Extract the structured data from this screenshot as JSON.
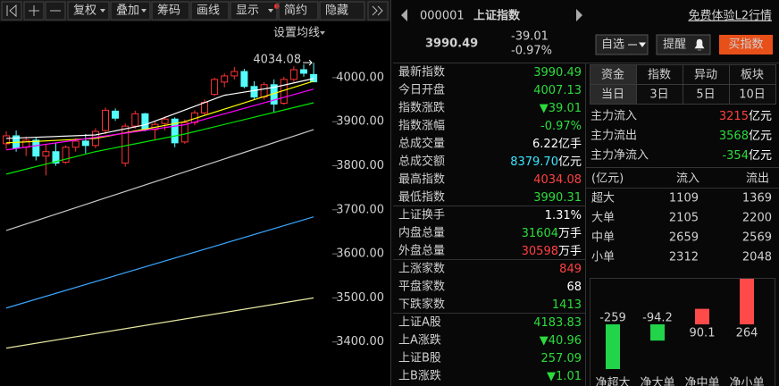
{
  "toolbar": {
    "buttons": [
      "复权",
      "叠加",
      "筹码",
      "画线",
      "显示",
      "简约",
      "隐藏"
    ],
    "active": 0,
    "ma_settings": "设置均线"
  },
  "chart_data": [
    {
      "type": "candlestick",
      "ylim": [
        3300,
        4085
      ],
      "yticks": [
        {
          "value": 4000,
          "label": "4000.00"
        },
        {
          "value": 3900,
          "label": "3900.00"
        },
        {
          "value": 3800,
          "label": "3800.00"
        },
        {
          "value": 3700,
          "label": "3700.00"
        },
        {
          "value": 3600,
          "label": "3600.00"
        },
        {
          "value": 3500,
          "label": "3500.00"
        },
        {
          "value": 3400,
          "label": "3400.00"
        }
      ],
      "up_color": "#ff3333",
      "down_color": "#54fcfc",
      "candles": [
        {
          "open": 3850,
          "high": 3878,
          "low": 3838,
          "close": 3868
        },
        {
          "open": 3868,
          "high": 3880,
          "low": 3832,
          "close": 3840
        },
        {
          "open": 3842,
          "high": 3866,
          "low": 3822,
          "close": 3858
        },
        {
          "open": 3858,
          "high": 3864,
          "low": 3812,
          "close": 3822
        },
        {
          "open": 3822,
          "high": 3848,
          "low": 3778,
          "close": 3832
        },
        {
          "open": 3832,
          "high": 3852,
          "low": 3800,
          "close": 3806
        },
        {
          "open": 3808,
          "high": 3846,
          "low": 3804,
          "close": 3842
        },
        {
          "open": 3842,
          "high": 3862,
          "low": 3832,
          "close": 3856
        },
        {
          "open": 3856,
          "high": 3872,
          "low": 3828,
          "close": 3846
        },
        {
          "open": 3846,
          "high": 3885,
          "low": 3840,
          "close": 3878
        },
        {
          "open": 3880,
          "high": 3932,
          "low": 3872,
          "close": 3926
        },
        {
          "open": 3924,
          "high": 3930,
          "low": 3902,
          "close": 3908
        },
        {
          "open": 3806,
          "high": 3896,
          "low": 3798,
          "close": 3890
        },
        {
          "open": 3890,
          "high": 3925,
          "low": 3884,
          "close": 3918
        },
        {
          "open": 3918,
          "high": 3920,
          "low": 3878,
          "close": 3882
        },
        {
          "open": 3882,
          "high": 3900,
          "low": 3860,
          "close": 3894
        },
        {
          "open": 3896,
          "high": 3912,
          "low": 3880,
          "close": 3906
        },
        {
          "open": 3906,
          "high": 3910,
          "low": 3842,
          "close": 3852
        },
        {
          "open": 3854,
          "high": 3905,
          "low": 3850,
          "close": 3898
        },
        {
          "open": 3898,
          "high": 3926,
          "low": 3892,
          "close": 3920
        },
        {
          "open": 3920,
          "high": 3950,
          "low": 3914,
          "close": 3944
        },
        {
          "open": 3962,
          "high": 4000,
          "low": 3958,
          "close": 3996
        },
        {
          "open": 3990,
          "high": 4010,
          "low": 3978,
          "close": 4004
        },
        {
          "open": 4004,
          "high": 4024,
          "low": 3996,
          "close": 4014
        },
        {
          "open": 4014,
          "high": 4020,
          "low": 3976,
          "close": 3980
        },
        {
          "open": 3980,
          "high": 3992,
          "low": 3950,
          "close": 3956
        },
        {
          "open": 3956,
          "high": 3990,
          "low": 3950,
          "close": 3984
        },
        {
          "open": 3984,
          "high": 3996,
          "low": 3920,
          "close": 3940
        },
        {
          "open": 3942,
          "high": 4002,
          "low": 3938,
          "close": 3996
        },
        {
          "open": 3996,
          "high": 4026,
          "low": 3990,
          "close": 4018
        },
        {
          "open": 4018,
          "high": 4030,
          "low": 4002,
          "close": 4010
        },
        {
          "open": 4007.13,
          "high": 4034.08,
          "low": 3990.31,
          "close": 3990.49
        }
      ],
      "ma_lines": [
        {
          "color": "#ffffff",
          "x": [
            0,
            9,
            14,
            22,
            27,
            31
          ],
          "values": [
            3862,
            3870,
            3893,
            3960,
            3978,
            3998
          ]
        },
        {
          "color": "#ffff00",
          "x": [
            0,
            9,
            18,
            25,
            31
          ],
          "values": [
            3852,
            3862,
            3900,
            3950,
            3992
          ]
        },
        {
          "color": "#ff00ff",
          "x": [
            0,
            18,
            31
          ],
          "values": [
            3836,
            3893,
            3974
          ]
        },
        {
          "color": "#00e600",
          "x": [
            0,
            9,
            18,
            31
          ],
          "values": [
            3781,
            3832,
            3872,
            3943
          ]
        },
        {
          "color": "#c8c8c8",
          "x": [
            0,
            31
          ],
          "values": [
            3653,
            3882
          ]
        },
        {
          "color": "#3aa6ff",
          "x": [
            0,
            31
          ],
          "values": [
            3477,
            3684
          ]
        },
        {
          "color": "#e8e8a0",
          "x": [
            0,
            31
          ],
          "values": [
            3386,
            3500
          ]
        }
      ],
      "high_marker": 4034.08
    },
    {
      "type": "bar",
      "categories": [
        "净超大",
        "净大单",
        "净中单",
        "净小单"
      ],
      "values": [
        -259,
        -94.2,
        90.1,
        264
      ],
      "up_color": "#ff4a4a",
      "down_color": "#22d44a"
    }
  ],
  "header": {
    "code": "000001",
    "name": "上证指数",
    "l2_link": "免费体验L2行情",
    "price": "3990.49",
    "change": "-39.01",
    "change_pct": "-0.97%",
    "buttons": [
      "自选",
      "提醒",
      "买指数"
    ]
  },
  "quote_table": {
    "groups": [
      [
        {
          "label": "最新指数",
          "value": "3990.49",
          "color": "#2bdc3c"
        },
        {
          "label": "今日开盘",
          "value": "4007.13",
          "color": "#2bdc3c"
        },
        {
          "label": "指数涨跌",
          "value": "▼39.01",
          "color": "#2bdc3c"
        },
        {
          "label": "指数涨幅",
          "value": "-0.97%",
          "color": "#2bdc3c"
        },
        {
          "label": "总成交量",
          "value": "6.22",
          "unit": "亿手",
          "color": "#ffffff"
        },
        {
          "label": "总成交额",
          "value": "8379.70",
          "unit": "亿元",
          "color": "#3ce6ff"
        },
        {
          "label": "最高指数",
          "value": "4034.08",
          "color": "#ff4040"
        },
        {
          "label": "最低指数",
          "value": "3990.31",
          "color": "#2bdc3c"
        }
      ],
      [
        {
          "label": "上证换手",
          "value": "1.31%",
          "color": "#ffffff"
        },
        {
          "label": "内盘总量",
          "value": "31604",
          "unit": "万手",
          "color": "#2bdc3c"
        },
        {
          "label": "外盘总量",
          "value": "30598",
          "unit": "万手",
          "color": "#ff4040"
        }
      ],
      [
        {
          "label": "上涨家数",
          "value": "849",
          "color": "#ff4040"
        },
        {
          "label": "平盘家数",
          "value": "68",
          "color": "#ffffff"
        },
        {
          "label": "下跌家数",
          "value": "1413",
          "color": "#2bdc3c"
        }
      ],
      [
        {
          "label": "上证A股",
          "value": "4183.83",
          "color": "#2bdc3c"
        },
        {
          "label": "上A涨跌",
          "value": "▼40.96",
          "color": "#2bdc3c"
        },
        {
          "label": "上证B股",
          "value": "257.09",
          "color": "#2bdc3c"
        },
        {
          "label": "上B涨跌",
          "value": "▼1.01",
          "color": "#2bdc3c"
        }
      ]
    ]
  },
  "fund_flow": {
    "tabs": [
      [
        "资金",
        "指数",
        "异动",
        "板块"
      ],
      [
        "当日",
        "3日",
        "5日",
        "10日"
      ]
    ],
    "summary": [
      {
        "label": "主力流入",
        "value": "3215",
        "unit": "亿元",
        "color": "#ff4040"
      },
      {
        "label": "主力流出",
        "value": "3568",
        "unit": "亿元",
        "color": "#2bdc3c"
      },
      {
        "label": "主力净流入",
        "value": "-354",
        "unit": "亿元",
        "color": "#2bdc3c"
      }
    ],
    "table": {
      "header": [
        "(亿元)",
        "流入",
        "流出"
      ],
      "rows": [
        [
          "超大",
          "1109",
          "1369"
        ],
        [
          "大单",
          "2105",
          "2200"
        ],
        [
          "中单",
          "2659",
          "2569"
        ],
        [
          "小单",
          "2312",
          "2048"
        ]
      ],
      "in_color": "#ff4040",
      "out_color": "#2bdc3c"
    }
  }
}
